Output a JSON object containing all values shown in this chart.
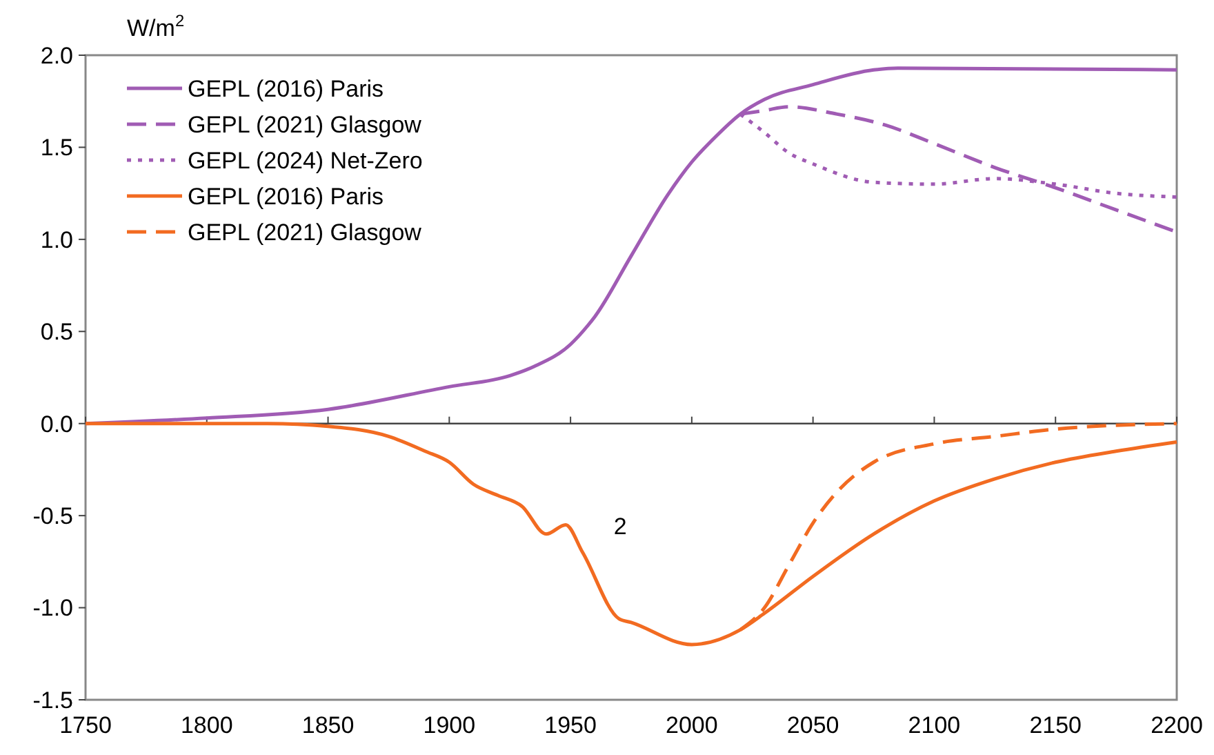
{
  "chart_data": {
    "type": "line",
    "ylabel": "W/m$^{2}$",
    "xlim": [
      1750,
      2200
    ],
    "xticks": [
      1750,
      1800,
      1850,
      1900,
      1950,
      2000,
      2050,
      2100,
      2150,
      2200
    ],
    "ylim": [
      -1.5,
      2.0
    ],
    "yticks": [
      {
        "value": -1.5,
        "label": "-1.5"
      },
      {
        "value": -1.0,
        "label": "-1.0"
      },
      {
        "value": -0.5,
        "label": "-0.5"
      },
      {
        "value": 0,
        "label": "0.0"
      },
      {
        "value": 0.5,
        "label": "0.5"
      },
      {
        "value": 1.0,
        "label": "1.0"
      },
      {
        "value": 1.5,
        "label": "1.5"
      },
      {
        "value": 2.0,
        "label": "2.0"
      }
    ],
    "legend": "top left",
    "marker": "none",
    "annotations": [
      "2"
    ],
    "series": [
      {
        "name": "GEPL (2016) Paris",
        "color": "#a05cb4",
        "line_style": "solid",
        "x": [
          1750,
          1800,
          1850,
          1900,
          1925,
          1935,
          1950,
          1957,
          1960,
          1975,
          1990,
          2000,
          2010,
          2020,
          2030,
          2050,
          2075,
          2085,
          2200
        ],
        "values": [
          0,
          0.03,
          0.077,
          0.2,
          0.26,
          0.31,
          0.43,
          0.53,
          0.58,
          0.91,
          1.24,
          1.42,
          1.56,
          1.68,
          1.76,
          1.84,
          1.92,
          1.93,
          1.92
        ]
      },
      {
        "name": "GEPL (2021) Glasgow",
        "color": "#a05cb4",
        "line_style": "dashed",
        "x": [
          2020,
          2030,
          2040,
          2060,
          2080,
          2100,
          2125,
          2150,
          2175,
          2200
        ],
        "values": [
          1.68,
          1.7,
          1.72,
          1.68,
          1.62,
          1.52,
          1.39,
          1.28,
          1.16,
          1.04
        ]
      },
      {
        "name": "GEPL (2024) Net-Zero",
        "color": "#a05cb4",
        "line_style": "dotted",
        "x": [
          2020,
          2030,
          2040,
          2050,
          2075,
          2100,
          2125,
          2150,
          2175,
          2200
        ],
        "values": [
          1.68,
          1.58,
          1.47,
          1.41,
          1.31,
          1.3,
          1.33,
          1.3,
          1.25,
          1.23
        ]
      },
      {
        "name": "GEPL (2016) Paris",
        "color": "#f26b21",
        "line_style": "solid",
        "x": [
          1750,
          1825,
          1850,
          1875,
          1890,
          1900,
          1910,
          1920,
          1930,
          1940,
          1948,
          1955,
          1970,
          1975,
          2000,
          2020,
          2030,
          2050,
          2075,
          2100,
          2125,
          2150,
          2175,
          2200
        ],
        "values": [
          0,
          0,
          -0.015,
          -0.07,
          -0.15,
          -0.21,
          -0.33,
          -0.39,
          -0.45,
          -0.6,
          -0.55,
          -0.7,
          -1.06,
          -1.08,
          -1.2,
          -1.12,
          -1.03,
          -0.83,
          -0.6,
          -0.42,
          -0.3,
          -0.21,
          -0.15,
          -0.1
        ]
      },
      {
        "name": "GEPL (2021) Glasgow",
        "color": "#f26b21",
        "line_style": "dashed",
        "x": [
          2020,
          2030,
          2040,
          2050,
          2060,
          2075,
          2100,
          2125,
          2150,
          2200
        ],
        "values": [
          -1.12,
          -1.0,
          -0.77,
          -0.54,
          -0.37,
          -0.21,
          -0.11,
          -0.07,
          -0.03,
          0
        ]
      }
    ]
  }
}
